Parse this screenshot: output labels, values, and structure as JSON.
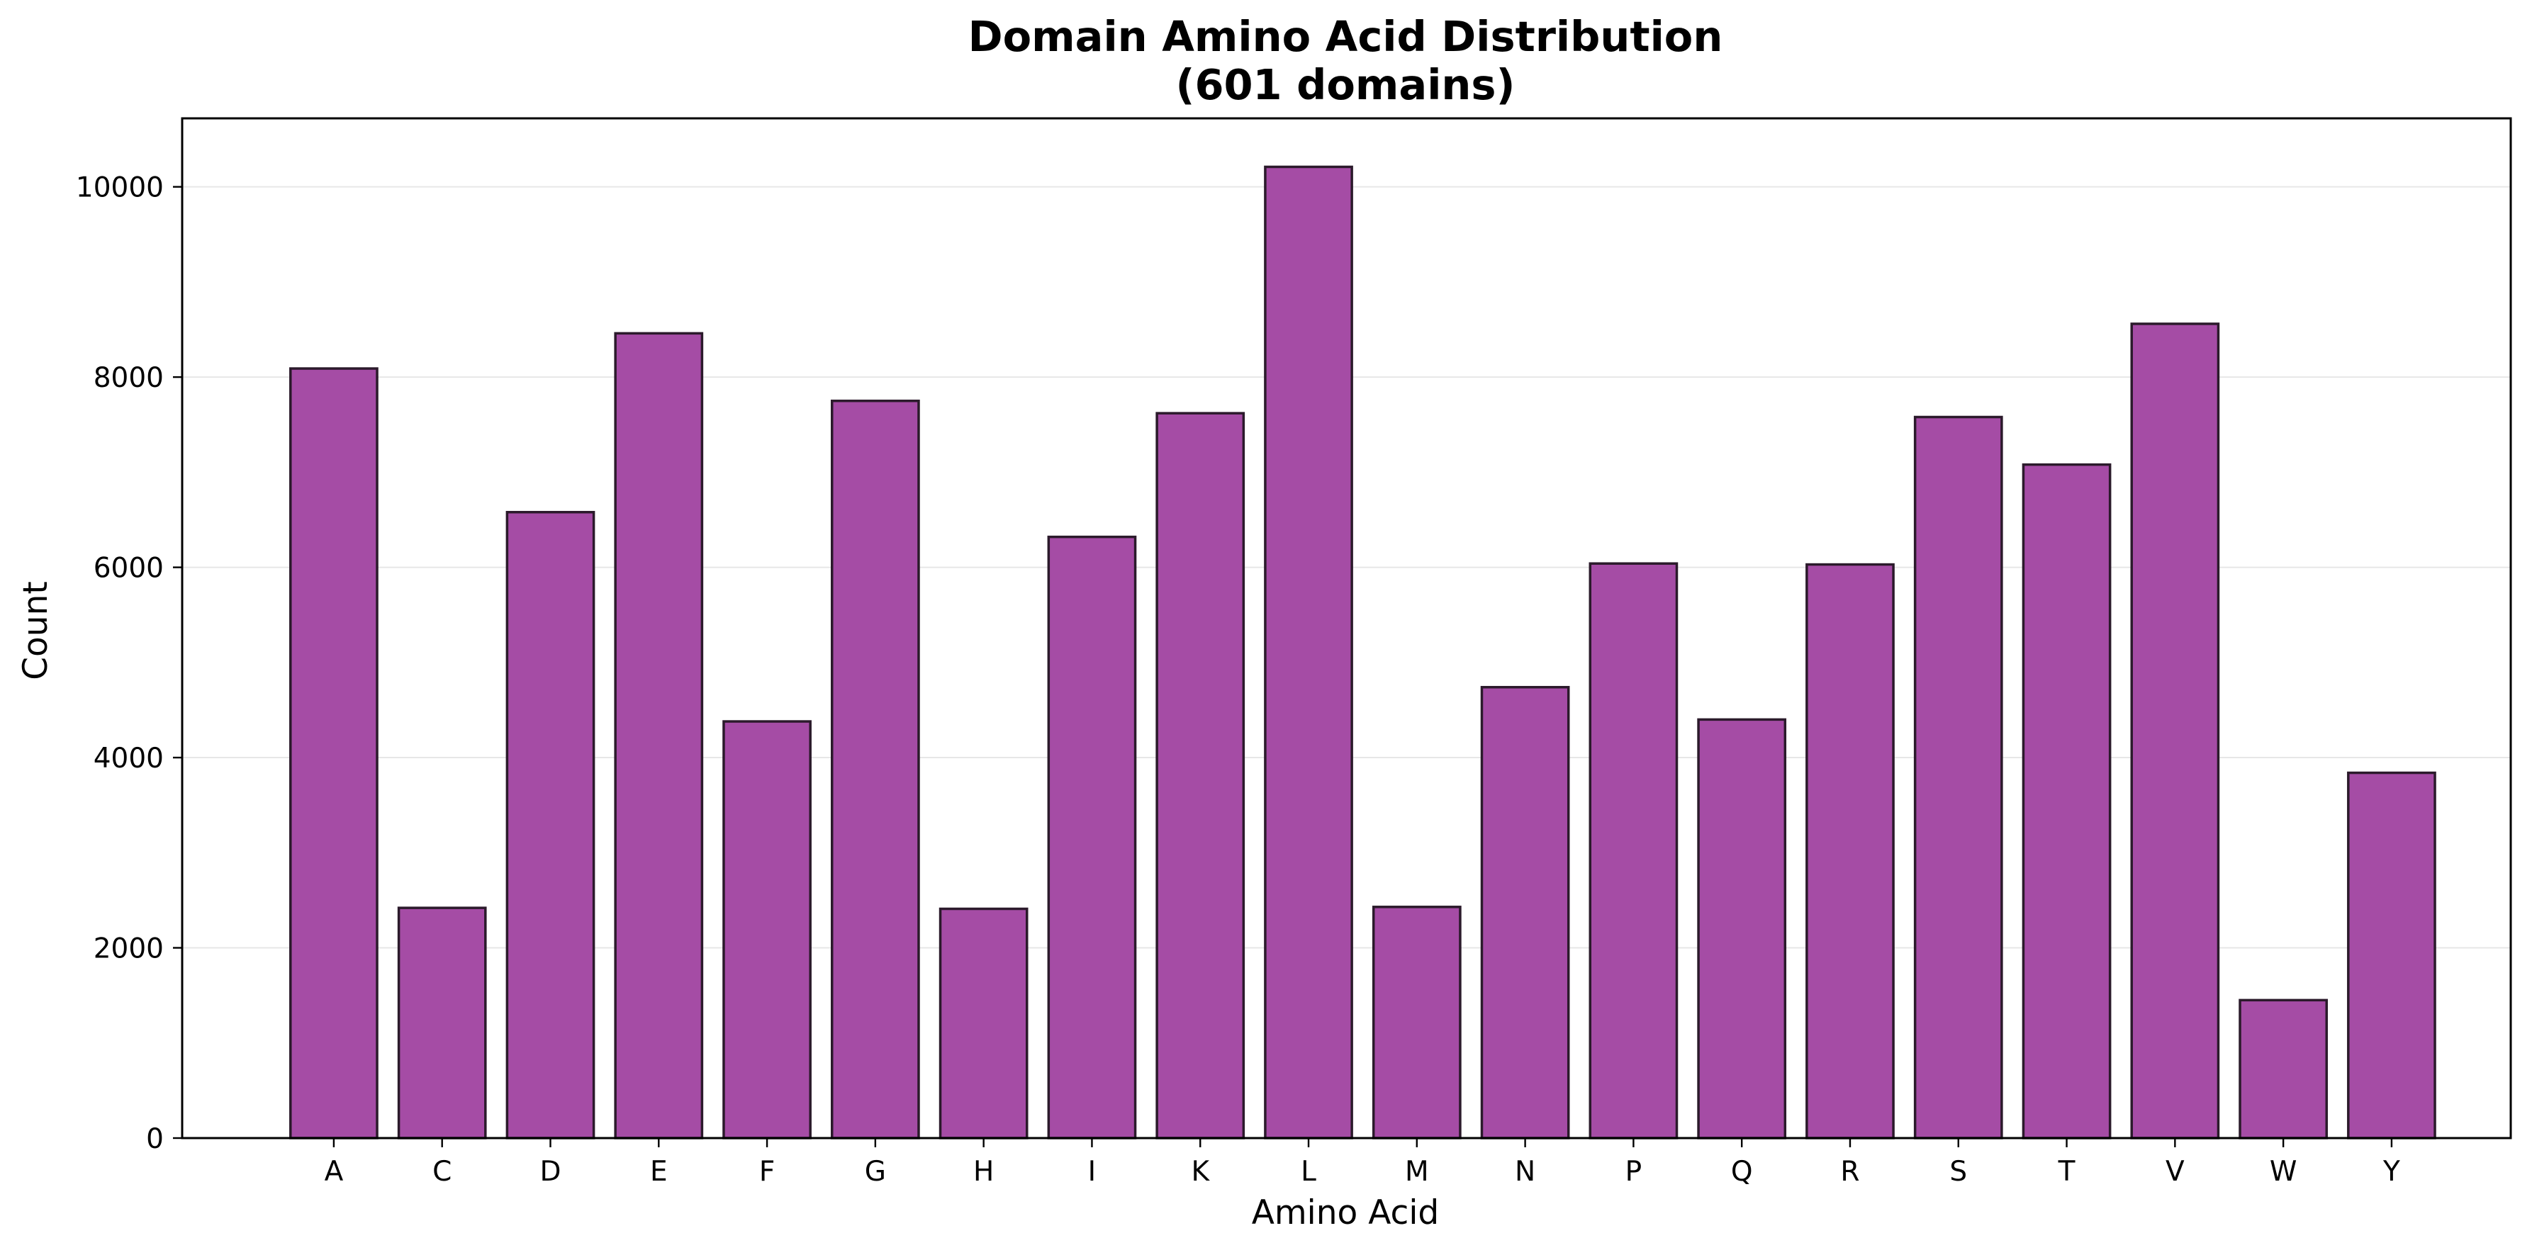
{
  "chart_data": {
    "type": "bar",
    "title": "Domain Amino Acid Distribution",
    "subtitle": "(601 domains)",
    "xlabel": "Amino Acid",
    "ylabel": "Count",
    "categories": [
      "A",
      "C",
      "D",
      "E",
      "F",
      "G",
      "H",
      "I",
      "K",
      "L",
      "M",
      "N",
      "P",
      "Q",
      "R",
      "S",
      "T",
      "V",
      "W",
      "Y"
    ],
    "values": [
      8090,
      2420,
      6580,
      8460,
      4380,
      7750,
      2410,
      6320,
      7620,
      10210,
      2430,
      4740,
      6040,
      4400,
      6030,
      7580,
      7080,
      8560,
      1450,
      3840
    ],
    "ylim": [
      0,
      10720
    ],
    "yticks": [
      0,
      2000,
      4000,
      6000,
      8000,
      10000
    ],
    "ytick_labels": [
      "0",
      "2000",
      "4000",
      "6000",
      "8000",
      "10000"
    ],
    "grid": "horizontal",
    "legend": "none",
    "colors": {
      "bar_fill": "#a54ca5",
      "bar_edge": "#2b1a2b"
    }
  }
}
